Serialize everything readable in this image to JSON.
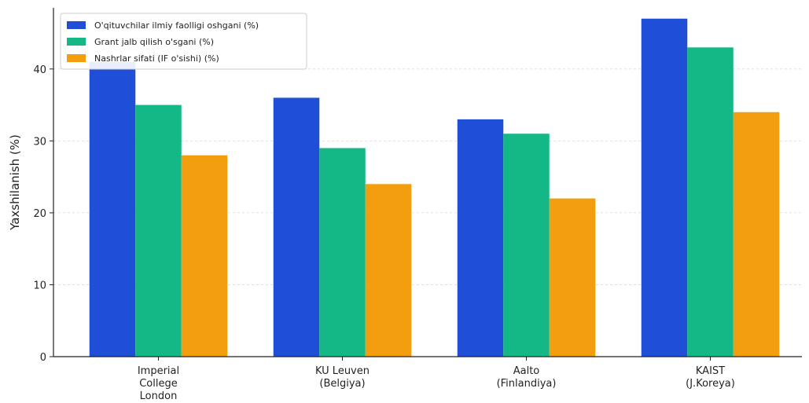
{
  "chart_data": {
    "type": "bar",
    "title": "",
    "xlabel": "",
    "ylabel": "Yaxshilanish (%)",
    "ylim": [
      0,
      48.5
    ],
    "yticks": [
      0,
      10,
      20,
      30,
      40
    ],
    "grid": "horizontal dashed",
    "legend_position": "top-left",
    "categories": [
      [
        "Imperial",
        "College",
        "London"
      ],
      [
        "KU Leuven",
        "(Belgiya)"
      ],
      [
        "Aalto",
        "(Finlandiya)"
      ],
      [
        "KAIST",
        "(J.Koreya)"
      ]
    ],
    "series": [
      {
        "name": "O'qituvchilar ilmiy faolligi oshgani (%)",
        "color": "#1f4fd6",
        "values": [
          41,
          36,
          33,
          47
        ]
      },
      {
        "name": "Grant jalb qilish o'sgani (%)",
        "color": "#13b886",
        "values": [
          35,
          29,
          31,
          43
        ]
      },
      {
        "name": "Nashrlar sifati (IF o'sishi) (%)",
        "color": "#f29e0f",
        "values": [
          28,
          24,
          22,
          34
        ]
      }
    ]
  }
}
